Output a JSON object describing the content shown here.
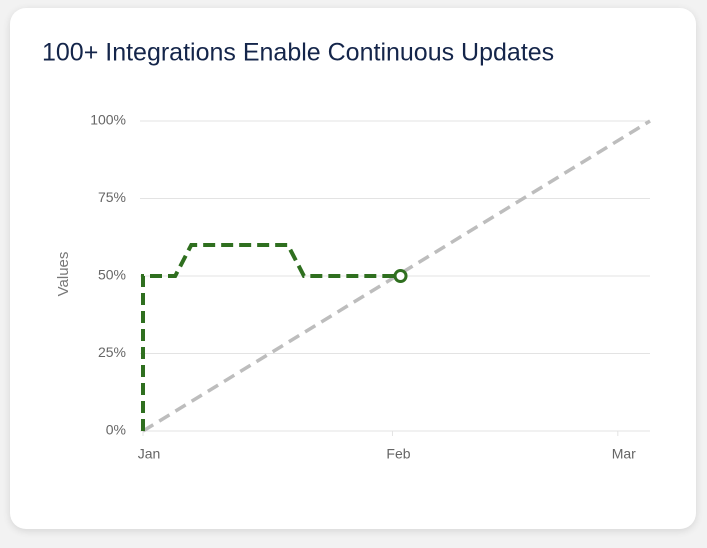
{
  "chart_data": {
    "type": "line",
    "title": "100+ Integrations Enable Continuous Updates",
    "y_label": "Values",
    "xlim": [
      0,
      63
    ],
    "xticks": [
      {
        "value": 0,
        "label": "Jan"
      },
      {
        "value": 31,
        "label": "Feb"
      },
      {
        "value": 59,
        "label": "Mar"
      }
    ],
    "ylim": [
      0,
      100
    ],
    "yticks": [
      {
        "value": 0,
        "label": "0%"
      },
      {
        "value": 25,
        "label": "25%"
      },
      {
        "value": 50,
        "label": "50%"
      },
      {
        "value": 75,
        "label": "75%"
      },
      {
        "value": 100,
        "label": "100%"
      }
    ],
    "grid": true,
    "series": [
      {
        "color": "#bdbdbd",
        "x": [
          0,
          63
        ],
        "values": [
          0,
          100
        ]
      },
      {
        "color": "#2f6f1f",
        "x": [
          0,
          0,
          4,
          6,
          18,
          20,
          32
        ],
        "values": [
          0,
          50,
          50,
          60,
          60,
          50,
          50
        ]
      }
    ]
  }
}
